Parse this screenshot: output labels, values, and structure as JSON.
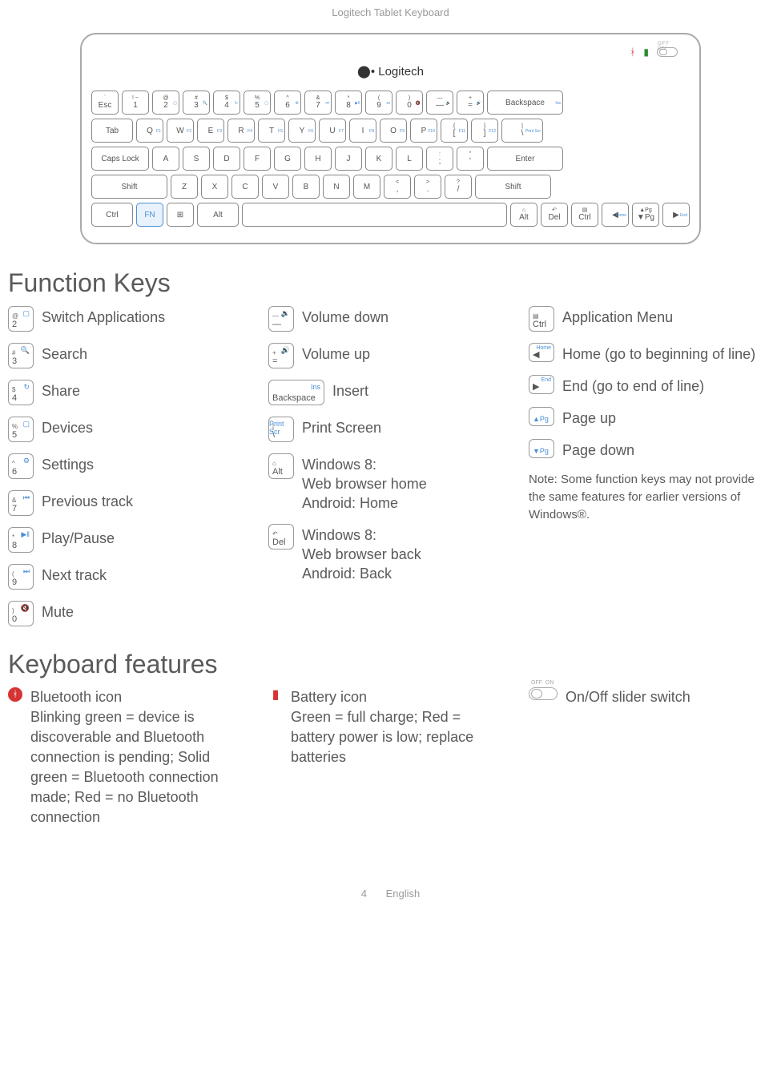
{
  "page": {
    "header": "Logitech Tablet Keyboard",
    "page_number": "4",
    "language": "English"
  },
  "keyboard_logo": "Logitech",
  "keyboard": {
    "row1": [
      {
        "u": "`",
        "l": "Esc",
        "fn": ""
      },
      {
        "u": "!  ~",
        "l": "1",
        "fn": ""
      },
      {
        "u": "@",
        "l": "2",
        "fn": "▢"
      },
      {
        "u": "#",
        "l": "3",
        "fn": "🔍"
      },
      {
        "u": "$",
        "l": "4",
        "fn": "↻"
      },
      {
        "u": "%",
        "l": "5",
        "fn": "▢"
      },
      {
        "u": "^",
        "l": "6",
        "fn": "⚙"
      },
      {
        "u": "&",
        "l": "7",
        "fn": "⏮"
      },
      {
        "u": "*",
        "l": "8",
        "fn": "▶‖"
      },
      {
        "u": "(",
        "l": "9",
        "fn": "⏭"
      },
      {
        "u": ")",
        "l": "0",
        "fn": "🔇"
      },
      {
        "u": "—",
        "l": "—",
        "fn": "🔉"
      },
      {
        "u": "+",
        "l": "=",
        "fn": "🔊"
      },
      {
        "u": "",
        "l": "Backspace",
        "fn": "Ins",
        "w": "xwide"
      }
    ],
    "row2": [
      {
        "u": "",
        "l": "Tab",
        "w": "wide"
      },
      {
        "u": "",
        "l": "Q",
        "fn": "F1"
      },
      {
        "u": "",
        "l": "W",
        "fn": "F2"
      },
      {
        "u": "",
        "l": "E",
        "fn": "F3"
      },
      {
        "u": "",
        "l": "R",
        "fn": "F4"
      },
      {
        "u": "",
        "l": "T",
        "fn": "F5"
      },
      {
        "u": "",
        "l": "Y",
        "fn": "F6"
      },
      {
        "u": "",
        "l": "U",
        "fn": "F7"
      },
      {
        "u": "",
        "l": "I",
        "fn": "F8"
      },
      {
        "u": "",
        "l": "O",
        "fn": "F9"
      },
      {
        "u": "",
        "l": "P",
        "fn": "F10"
      },
      {
        "u": "{",
        "l": "[",
        "fn": "F11"
      },
      {
        "u": "}",
        "l": "]",
        "fn": "F12"
      },
      {
        "u": "|",
        "l": "\\",
        "fn": "Print Scr",
        "w": "wide"
      }
    ],
    "row3": [
      {
        "u": "",
        "l": "Caps Lock",
        "w": "wider"
      },
      {
        "u": "",
        "l": "A"
      },
      {
        "u": "",
        "l": "S"
      },
      {
        "u": "",
        "l": "D"
      },
      {
        "u": "",
        "l": "F"
      },
      {
        "u": "",
        "l": "G"
      },
      {
        "u": "",
        "l": "H"
      },
      {
        "u": "",
        "l": "J"
      },
      {
        "u": "",
        "l": "K"
      },
      {
        "u": "",
        "l": "L"
      },
      {
        "u": ":",
        "l": ";"
      },
      {
        "u": "\"",
        "l": "'"
      },
      {
        "u": "",
        "l": "Enter",
        "w": "xwide"
      }
    ],
    "row4": [
      {
        "u": "",
        "l": "Shift",
        "w": "xwide"
      },
      {
        "u": "",
        "l": "Z"
      },
      {
        "u": "",
        "l": "X"
      },
      {
        "u": "",
        "l": "C"
      },
      {
        "u": "",
        "l": "V"
      },
      {
        "u": "",
        "l": "B"
      },
      {
        "u": "",
        "l": "N"
      },
      {
        "u": "",
        "l": "M"
      },
      {
        "u": "<",
        "l": ","
      },
      {
        "u": ">",
        "l": "."
      },
      {
        "u": "?",
        "l": "/"
      },
      {
        "u": "",
        "l": "Shift",
        "w": "xwide"
      }
    ],
    "row5": [
      {
        "u": "",
        "l": "Ctrl",
        "w": "wide"
      },
      {
        "u": "",
        "l": "FN",
        "cls": "fn-key"
      },
      {
        "u": "",
        "l": "⊞"
      },
      {
        "u": "",
        "l": "Alt",
        "w": "wide"
      },
      {
        "u": "",
        "l": " ",
        "w": "space"
      },
      {
        "u": "⌂",
        "l": "Alt"
      },
      {
        "u": "↶",
        "l": "Del"
      },
      {
        "u": "▤",
        "l": "Ctrl"
      },
      {
        "u": "",
        "l": "◀",
        "fn": "Home"
      },
      {
        "u": "▲Pg",
        "l": "▼Pg"
      },
      {
        "u": "",
        "l": "▶",
        "fn": "End"
      }
    ]
  },
  "sections": {
    "function_keys_title": "Function Keys",
    "keyboard_features_title": "Keyboard features"
  },
  "fn_col1": [
    {
      "u": "@",
      "l": "2",
      "icon": "▢",
      "label": "Switch Applications"
    },
    {
      "u": "#",
      "l": "3",
      "icon": "🔍",
      "label": "Search"
    },
    {
      "u": "$",
      "l": "4",
      "icon": "↻",
      "label": "Share"
    },
    {
      "u": "%",
      "l": "5",
      "icon": "▢",
      "label": "Devices"
    },
    {
      "u": "^",
      "l": "6",
      "icon": "⚙",
      "label": "Settings"
    },
    {
      "u": "&",
      "l": "7",
      "icon": "⏮",
      "label": "Previous track"
    },
    {
      "u": "*",
      "l": "8",
      "icon": "▶‖",
      "label": "Play/Pause"
    },
    {
      "u": "(",
      "l": "9",
      "icon": "⏭",
      "label": "Next track"
    },
    {
      "u": ")",
      "l": "0",
      "icon": "🔇",
      "label": "Mute"
    }
  ],
  "fn_col2": [
    {
      "u": "—",
      "l": "—",
      "icon": "🔉",
      "label": "Volume down"
    },
    {
      "u": "+",
      "l": "=",
      "icon": "🔊",
      "label": "Volume up"
    },
    {
      "u": "",
      "l": "Backspace",
      "icon": "Ins",
      "label": "Insert",
      "wide": true
    },
    {
      "u": "|",
      "l": "\\",
      "icon": "Print Scr",
      "label": "Print Screen"
    },
    {
      "u": "⌂",
      "l": "Alt",
      "icon": "",
      "label": "Windows 8:\nWeb browser home\nAndroid: Home",
      "multiline": true
    },
    {
      "u": "↶",
      "l": "Del",
      "icon": "",
      "label": "Windows 8:\nWeb browser back\nAndroid: Back",
      "multiline": true
    }
  ],
  "fn_col3": [
    {
      "u": "▤",
      "l": "Ctrl",
      "icon": "",
      "label": "Application Menu"
    },
    {
      "u": "",
      "l": "◀",
      "fn": "Home",
      "label": "Home (go to beginning of line)",
      "short": true
    },
    {
      "u": "",
      "l": "▶",
      "fn": "End",
      "label": "End (go to end of line)",
      "short": true
    },
    {
      "u": "",
      "l": "▲Pg",
      "label": "Page up",
      "short": true,
      "blue": true
    },
    {
      "u": "",
      "l": "▼Pg",
      "label": "Page down",
      "short": true,
      "blue": true
    }
  ],
  "fn_note": "Note: Some function keys may not provide the same features for earlier versions of Windows®.",
  "features": {
    "bluetooth": {
      "title": "Bluetooth icon",
      "desc": "Blinking green = device is discoverable and Bluetooth connection is pending; Solid green = Bluetooth connection made; Red = no Bluetooth connection"
    },
    "battery": {
      "title": "Battery icon",
      "desc": "Green = full charge; Red = battery power is low; replace batteries"
    },
    "switch": {
      "title": "On/Off slider switch"
    }
  }
}
